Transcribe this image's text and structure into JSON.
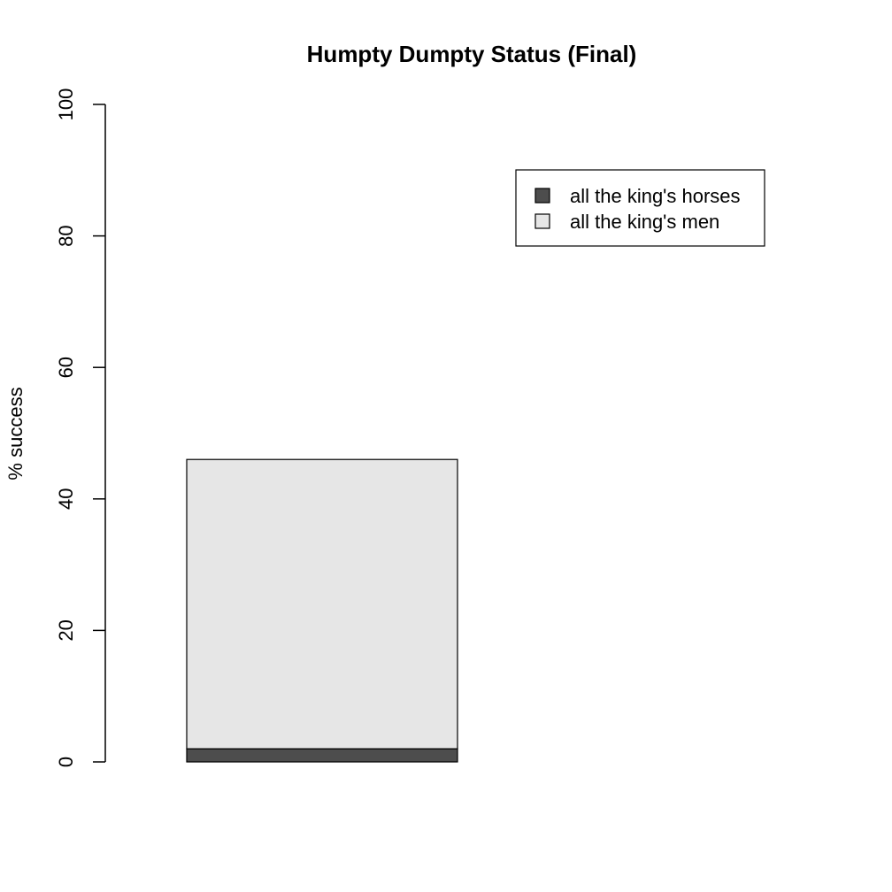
{
  "chart_data": {
    "type": "bar",
    "stacked": true,
    "title": "Humpty Dumpty Status (Final)",
    "xlabel": "",
    "ylabel": "% success",
    "ylim": [
      0,
      100
    ],
    "yticks": [
      0,
      20,
      40,
      60,
      80,
      100
    ],
    "categories": [
      ""
    ],
    "series": [
      {
        "name": "all the king's horses",
        "values": [
          2
        ],
        "color": "#4d4d4d"
      },
      {
        "name": "all the king's men",
        "values": [
          44
        ],
        "color": "#e6e6e6"
      }
    ],
    "legend": {
      "position": "top-right",
      "entries": [
        "all the king's horses",
        "all the king's men"
      ]
    },
    "grid": false
  }
}
